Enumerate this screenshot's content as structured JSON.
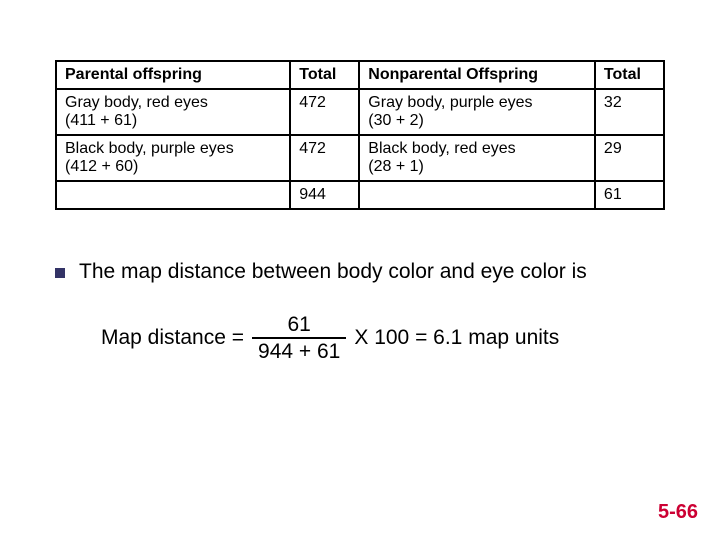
{
  "table": {
    "border_color": "#000000",
    "font_size": 16,
    "columns": [
      {
        "label": "Parental offspring",
        "align": "left"
      },
      {
        "label": "Total",
        "align": "left"
      },
      {
        "label": "Nonparental Offspring",
        "align": "left"
      },
      {
        "label": "Total",
        "align": "left"
      }
    ],
    "rows": [
      {
        "c0_l1": "Gray body, red eyes",
        "c0_l2": "(411 + 61)",
        "c1": "472",
        "c2_l1": "Gray body, purple eyes",
        "c2_l2": "(30 + 2)",
        "c3": "32"
      },
      {
        "c0_l1": "Black body, purple eyes",
        "c0_l2": "(412 + 60)",
        "c1": "472",
        "c2_l1": "Black body, red eyes",
        "c2_l2": "(28 + 1)",
        "c3": "29"
      }
    ],
    "totals": {
      "c1": "944",
      "c3": "61"
    }
  },
  "bullet": {
    "marker_color": "#333366",
    "text": "The map distance between body color and eye color is"
  },
  "formula": {
    "lhs": "Map distance = ",
    "numerator": "61",
    "denominator": "944 + 61",
    "rhs": " X 100 = 6.1 map units"
  },
  "page_number": {
    "text": "5-66",
    "color": "#cc0033"
  }
}
